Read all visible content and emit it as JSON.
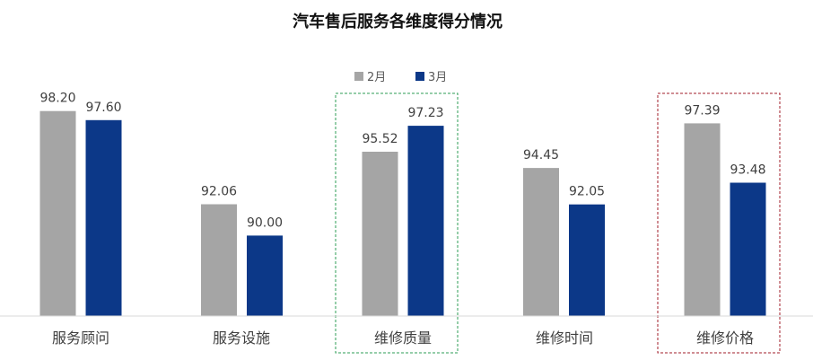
{
  "chart_data": {
    "type": "bar",
    "title": "汽车售后服务各维度得分情况",
    "categories": [
      "服务顾问",
      "服务设施",
      "维修质量",
      "维修时间",
      "维修价格"
    ],
    "series": [
      {
        "name": "2月",
        "values": [
          98.2,
          92.06,
          95.52,
          94.45,
          97.39
        ],
        "labels": [
          "98.20",
          "92.06",
          "95.52",
          "94.45",
          "97.39"
        ],
        "color": "#A5A5A5"
      },
      {
        "name": "3月",
        "values": [
          97.6,
          90.0,
          97.23,
          92.05,
          93.48
        ],
        "labels": [
          "97.60",
          "90.00",
          "97.23",
          "92.05",
          "93.48"
        ],
        "color": "#0C3888"
      }
    ],
    "ylim": [
      84.7,
      99.6
    ],
    "legend_position": "top-center",
    "grid": false,
    "highlights": [
      {
        "category": "维修质量",
        "color": "#2E9E55",
        "style": "dashed"
      },
      {
        "category": "维修价格",
        "color": "#A11D2A",
        "style": "dashed"
      }
    ],
    "axis_color": "#D9D9D9"
  }
}
